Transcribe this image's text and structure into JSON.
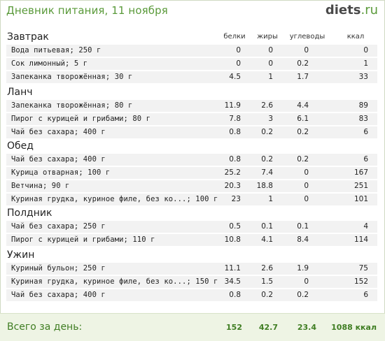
{
  "header": {
    "title": "Дневник питания, 11 ноября",
    "logo_main": "diets",
    "logo_suffix": ".ru"
  },
  "columns": {
    "protein": "белки",
    "fat": "жиры",
    "carbs": "углеводы",
    "kcal": "ккал"
  },
  "meals": [
    {
      "name": "Завтрак",
      "items": [
        {
          "name": "Вода питьевая; 250 г",
          "protein": "0",
          "fat": "0",
          "carbs": "0",
          "kcal": "0"
        },
        {
          "name": "Сок лимонный; 5 г",
          "protein": "0",
          "fat": "0",
          "carbs": "0.2",
          "kcal": "1"
        },
        {
          "name": "Запеканка творожённая; 30 г",
          "protein": "4.5",
          "fat": "1",
          "carbs": "1.7",
          "kcal": "33"
        }
      ]
    },
    {
      "name": "Ланч",
      "items": [
        {
          "name": "Запеканка творожённая; 80 г",
          "protein": "11.9",
          "fat": "2.6",
          "carbs": "4.4",
          "kcal": "89"
        },
        {
          "name": "Пирог с курицей и грибами; 80 г",
          "protein": "7.8",
          "fat": "3",
          "carbs": "6.1",
          "kcal": "83"
        },
        {
          "name": "Чай без сахара; 400 г",
          "protein": "0.8",
          "fat": "0.2",
          "carbs": "0.2",
          "kcal": "6"
        }
      ]
    },
    {
      "name": "Обед",
      "items": [
        {
          "name": "Чай без сахара; 400 г",
          "protein": "0.8",
          "fat": "0.2",
          "carbs": "0.2",
          "kcal": "6"
        },
        {
          "name": "Курица отварная; 100 г",
          "protein": "25.2",
          "fat": "7.4",
          "carbs": "0",
          "kcal": "167"
        },
        {
          "name": "Ветчина; 90 г",
          "protein": "20.3",
          "fat": "18.8",
          "carbs": "0",
          "kcal": "251"
        },
        {
          "name": "Куриная грудка, куриное филе, без ко...; 100 г",
          "protein": "23",
          "fat": "1",
          "carbs": "0",
          "kcal": "101"
        }
      ]
    },
    {
      "name": "Полдник",
      "items": [
        {
          "name": "Чай без сахара; 250 г",
          "protein": "0.5",
          "fat": "0.1",
          "carbs": "0.1",
          "kcal": "4"
        },
        {
          "name": "Пирог с курицей и грибами; 110 г",
          "protein": "10.8",
          "fat": "4.1",
          "carbs": "8.4",
          "kcal": "114"
        }
      ]
    },
    {
      "name": "Ужин",
      "items": [
        {
          "name": "Куриный бульон; 250 г",
          "protein": "11.1",
          "fat": "2.6",
          "carbs": "1.9",
          "kcal": "75"
        },
        {
          "name": "Куриная грудка, куриное филе, без ко...; 150 г",
          "protein": "34.5",
          "fat": "1.5",
          "carbs": "0",
          "kcal": "152"
        },
        {
          "name": "Чай без сахара; 400 г",
          "protein": "0.8",
          "fat": "0.2",
          "carbs": "0.2",
          "kcal": "6"
        }
      ]
    }
  ],
  "totals": {
    "label": "Всего за день:",
    "protein": "152",
    "fat": "42.7",
    "carbs": "23.4",
    "kcal": "1088 ккал"
  }
}
